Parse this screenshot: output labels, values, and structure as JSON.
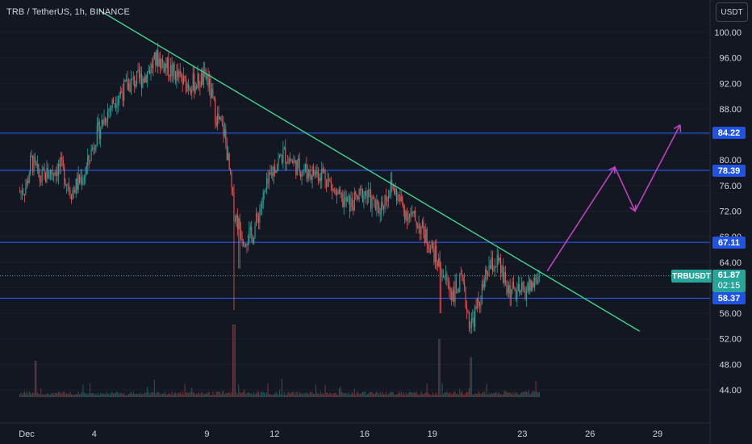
{
  "header": {
    "symbol_title": "TRB / TetherUS, 1h, BINANCE"
  },
  "toolbar": {
    "currency_label": "USDT"
  },
  "current": {
    "symbol": "TRBUSDT",
    "price": "61.87",
    "countdown": "02:15"
  },
  "colors": {
    "background": "#131722",
    "up": "#26a69a",
    "down": "#ef5350",
    "level": "#2962ff",
    "trendline": "#3dd68c",
    "projection": "#c040c0",
    "tag": "#1e53e5",
    "axis_text": "#d1d4dc"
  },
  "chart_data": {
    "type": "candlestick",
    "ylim": [
      42,
      102
    ],
    "y_ticks": [
      44,
      48,
      52,
      56,
      60,
      64,
      68,
      72,
      76,
      80,
      84,
      88,
      92,
      96,
      100
    ],
    "x_ticks": [
      {
        "label": "Dec",
        "day": 1
      },
      {
        "label": "4",
        "day": 4
      },
      {
        "label": "9",
        "day": 9
      },
      {
        "label": "12",
        "day": 12
      },
      {
        "label": "16",
        "day": 16
      },
      {
        "label": "19",
        "day": 19
      },
      {
        "label": "23",
        "day": 23
      },
      {
        "label": "26",
        "day": 26
      },
      {
        "label": "29",
        "day": 29
      }
    ],
    "xlim_days": [
      0.7,
      32
    ],
    "horizontal_levels": [
      {
        "value": 84.22,
        "label": "84.22"
      },
      {
        "value": 78.39,
        "label": "78.39"
      },
      {
        "value": 67.11,
        "label": "67.11"
      },
      {
        "value": 58.37,
        "label": "58.37"
      }
    ],
    "trendline": [
      {
        "day": 4.2,
        "price": 103.5
      },
      {
        "day": 28.2,
        "price": 53.2
      }
    ],
    "projection": [
      {
        "day": 24.1,
        "price": 62.6
      },
      {
        "day": 27.1,
        "price": 78.9
      },
      {
        "day": 28.0,
        "price": 72.0
      },
      {
        "day": 30.0,
        "price": 85.5
      }
    ],
    "price_path": [
      {
        "day": 0.7,
        "price": 75
      },
      {
        "day": 1.0,
        "price": 76
      },
      {
        "day": 1.2,
        "price": 80
      },
      {
        "day": 1.6,
        "price": 77
      },
      {
        "day": 2.0,
        "price": 78
      },
      {
        "day": 2.5,
        "price": 79
      },
      {
        "day": 3.0,
        "price": 75
      },
      {
        "day": 3.6,
        "price": 78
      },
      {
        "day": 4.0,
        "price": 83
      },
      {
        "day": 4.5,
        "price": 87
      },
      {
        "day": 5.0,
        "price": 90
      },
      {
        "day": 5.6,
        "price": 92
      },
      {
        "day": 6.2,
        "price": 93
      },
      {
        "day": 6.8,
        "price": 96
      },
      {
        "day": 7.4,
        "price": 94
      },
      {
        "day": 8.0,
        "price": 92
      },
      {
        "day": 8.5,
        "price": 92
      },
      {
        "day": 9.0,
        "price": 93
      },
      {
        "day": 9.4,
        "price": 87
      },
      {
        "day": 9.8,
        "price": 84
      },
      {
        "day": 10.2,
        "price": 72
      },
      {
        "day": 10.6,
        "price": 68
      },
      {
        "day": 11.0,
        "price": 68
      },
      {
        "day": 11.5,
        "price": 74
      },
      {
        "day": 12.0,
        "price": 79
      },
      {
        "day": 12.4,
        "price": 81
      },
      {
        "day": 13.0,
        "price": 79
      },
      {
        "day": 13.6,
        "price": 78
      },
      {
        "day": 14.2,
        "price": 78
      },
      {
        "day": 14.8,
        "price": 74
      },
      {
        "day": 15.4,
        "price": 73
      },
      {
        "day": 16.0,
        "price": 75
      },
      {
        "day": 16.6,
        "price": 72
      },
      {
        "day": 17.2,
        "price": 76
      },
      {
        "day": 17.8,
        "price": 72
      },
      {
        "day": 18.4,
        "price": 70
      },
      {
        "day": 19.0,
        "price": 66
      },
      {
        "day": 19.5,
        "price": 62
      },
      {
        "day": 19.9,
        "price": 59
      },
      {
        "day": 20.3,
        "price": 61
      },
      {
        "day": 20.7,
        "price": 54
      },
      {
        "day": 21.1,
        "price": 58
      },
      {
        "day": 21.5,
        "price": 63
      },
      {
        "day": 21.9,
        "price": 64
      },
      {
        "day": 22.3,
        "price": 60
      },
      {
        "day": 22.8,
        "price": 59
      },
      {
        "day": 23.3,
        "price": 60
      },
      {
        "day": 23.8,
        "price": 61.87
      }
    ],
    "wick_events": [
      {
        "day": 10.2,
        "low": 56.5
      },
      {
        "day": 10.45,
        "low": 63
      },
      {
        "day": 19.35,
        "low": 56
      },
      {
        "day": 20.7,
        "low": 53
      }
    ],
    "volume_spikes": [
      {
        "day": 10.2,
        "value": 1.0
      },
      {
        "day": 19.3,
        "value": 0.8
      },
      {
        "day": 20.7,
        "value": 0.55
      },
      {
        "day": 1.4,
        "value": 0.5
      }
    ]
  }
}
